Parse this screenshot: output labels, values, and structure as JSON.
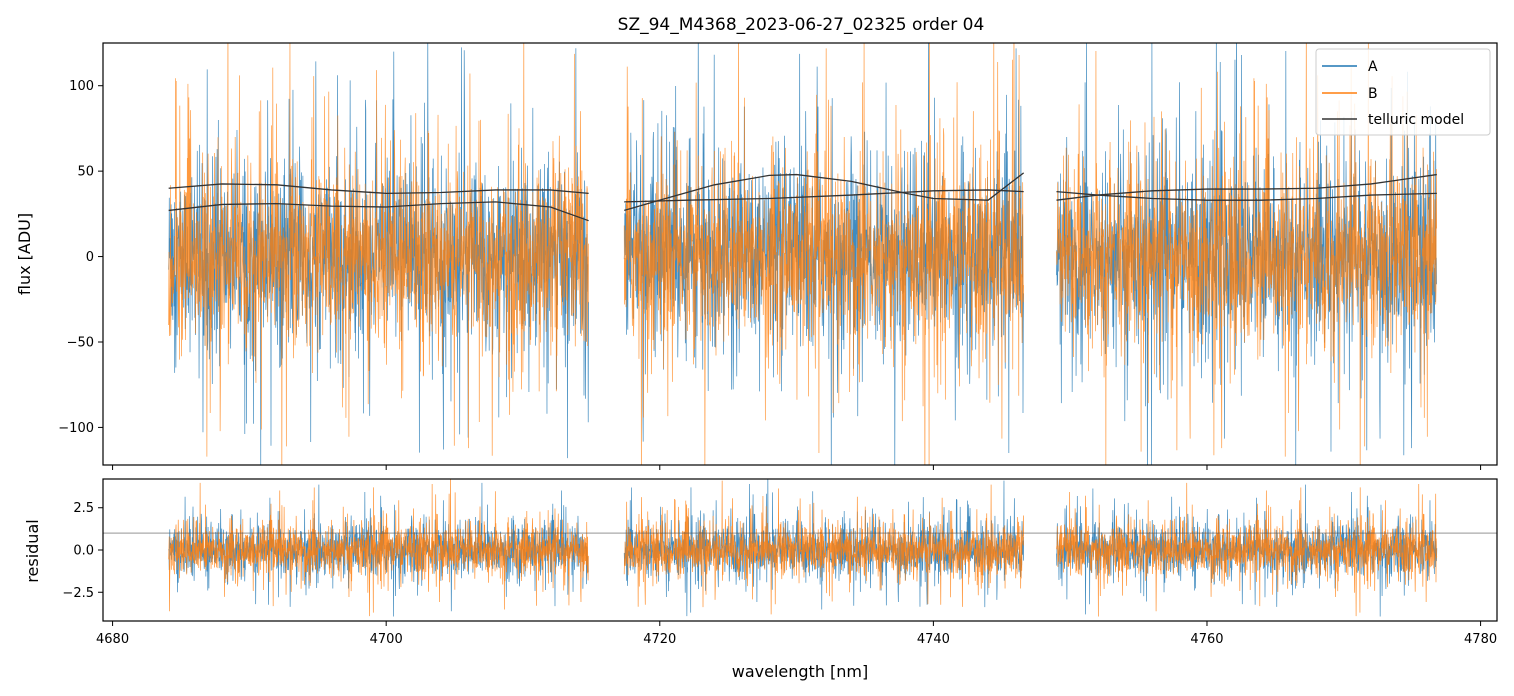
{
  "chart_data": [
    {
      "type": "line",
      "title": "SZ_94_M4368_2023-06-27_02325  order 04",
      "xlabel": "",
      "ylabel": "flux [ADU]",
      "xlim": [
        4679.3,
        4781.2
      ],
      "ylim": [
        -122,
        125
      ],
      "yticks": [
        -100,
        -50,
        0,
        50,
        100
      ],
      "ytick_labels": [
        "−100",
        "−50",
        "0",
        "50",
        "100"
      ],
      "legend": {
        "placement": "top-right",
        "entries": [
          "A",
          "B",
          "telluric model"
        ]
      },
      "segments": [
        [
          4684.1,
          4714.8
        ],
        [
          4717.4,
          4746.6
        ],
        [
          4749.0,
          4776.8
        ]
      ],
      "series": [
        {
          "name": "A",
          "color": "#1f77b4",
          "kind": "noisy-spectrum",
          "center": 0,
          "spread": 45
        },
        {
          "name": "B",
          "color": "#ff7f0e",
          "kind": "noisy-spectrum",
          "center": 0,
          "spread": 45
        },
        {
          "name": "telluric model",
          "color": "#333333",
          "kind": "model-curves",
          "curves": [
            {
              "x": [
                4684.1,
                4688,
                4692,
                4696,
                4700,
                4704,
                4708,
                4712,
                4714.8
              ],
              "y": [
                40,
                42.5,
                42,
                39,
                37,
                37.5,
                39,
                39,
                37
              ]
            },
            {
              "x": [
                4684.1,
                4688,
                4692,
                4696,
                4700,
                4704,
                4708,
                4712,
                4714.8
              ],
              "y": [
                27,
                30.5,
                31,
                29.5,
                29,
                31,
                32,
                29,
                21
              ]
            },
            {
              "x": [
                4717.4,
                4720,
                4724,
                4728,
                4730,
                4734,
                4738,
                4740,
                4744,
                4746.6
              ],
              "y": [
                27,
                33,
                42,
                47.5,
                48,
                44,
                37,
                34,
                33,
                49
              ]
            },
            {
              "x": [
                4717.4,
                4722,
                4728,
                4734,
                4740,
                4744,
                4746.6
              ],
              "y": [
                32,
                33,
                34,
                36,
                38.5,
                39,
                38
              ]
            },
            {
              "x": [
                4749.0,
                4752,
                4756,
                4760,
                4764,
                4768,
                4772,
                4776.8
              ],
              "y": [
                33,
                36,
                38.5,
                39.5,
                39.5,
                40,
                42.5,
                48
              ]
            },
            {
              "x": [
                4749.0,
                4752,
                4756,
                4760,
                4764,
                4768,
                4772,
                4776.8
              ],
              "y": [
                38,
                36,
                34,
                33,
                33,
                34,
                36,
                37
              ]
            }
          ]
        }
      ]
    },
    {
      "type": "line",
      "title": "",
      "xlabel": "wavelength [nm]",
      "ylabel": "residual",
      "xlim": [
        4679.3,
        4781.2
      ],
      "ylim": [
        -4.2,
        4.2
      ],
      "yticks": [
        -2.5,
        0.0,
        2.5
      ],
      "ytick_labels": [
        "−2.5",
        "0.0",
        "2.5"
      ],
      "xticks": [
        4680,
        4700,
        4720,
        4740,
        4760,
        4780
      ],
      "xtick_labels": [
        "4680",
        "4700",
        "4720",
        "4740",
        "4760",
        "4780"
      ],
      "reference_line": 1.0,
      "segments": [
        [
          4684.1,
          4714.8
        ],
        [
          4717.4,
          4746.6
        ],
        [
          4749.0,
          4776.8
        ]
      ],
      "series": [
        {
          "name": "A",
          "color": "#1f77b4",
          "kind": "noisy-residual",
          "center": 0,
          "spread": 1.3
        },
        {
          "name": "B",
          "color": "#ff7f0e",
          "kind": "noisy-residual",
          "center": 0,
          "spread": 1.3
        }
      ]
    }
  ]
}
